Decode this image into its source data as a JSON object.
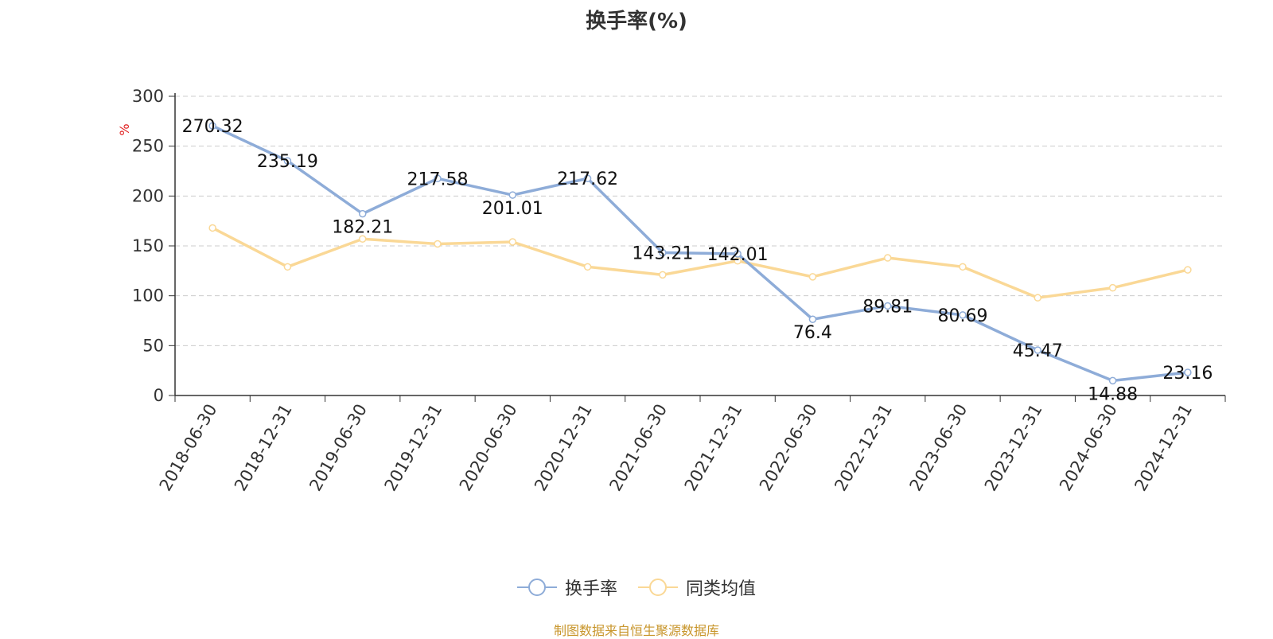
{
  "colors": {
    "turnover": "#8eacd8",
    "peer_avg": "#fad896",
    "grid": "#cccccc",
    "axis": "#333333",
    "unit": "#e02020",
    "source": "#c8962c"
  },
  "chart_data": {
    "type": "line",
    "title": "换手率(%)",
    "ylabel": "%",
    "xlabel": "",
    "categories": [
      "2018-06-30",
      "2018-12-31",
      "2019-06-30",
      "2019-12-31",
      "2020-06-30",
      "2020-12-31",
      "2021-06-30",
      "2021-12-31",
      "2022-06-30",
      "2022-12-31",
      "2023-06-30",
      "2023-12-31",
      "2024-06-30",
      "2024-12-31"
    ],
    "ylim": [
      0,
      300
    ],
    "yticks": [
      0,
      50,
      100,
      150,
      200,
      250,
      300
    ],
    "grid": "horizontal dashed",
    "legend_position": "bottom-center",
    "series": [
      {
        "name": "换手率",
        "color": "#8eacd8",
        "values": [
          270.32,
          235.19,
          182.21,
          217.58,
          201.01,
          217.62,
          143.21,
          142.01,
          76.4,
          89.81,
          80.69,
          45.47,
          14.88,
          23.16
        ],
        "labels": [
          "270.32",
          "235.19",
          "182.21",
          "217.58",
          "201.01",
          "217.62",
          "143.21",
          "142.01",
          "76.4",
          "89.81",
          "80.69",
          "45.47",
          "14.88",
          "23.16"
        ]
      },
      {
        "name": "同类均值",
        "color": "#fad896",
        "values": [
          168,
          129,
          157,
          152,
          154,
          129,
          121,
          135,
          119,
          138,
          129,
          98,
          108,
          126
        ]
      }
    ]
  },
  "legend": {
    "items": [
      "换手率",
      "同类均值"
    ]
  },
  "source_note": "制图数据来自恒生聚源数据库"
}
